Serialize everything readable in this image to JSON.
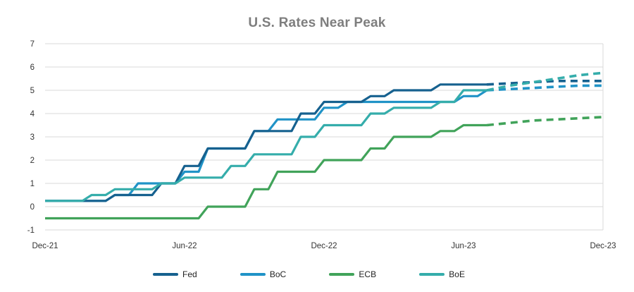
{
  "chart_data": {
    "type": "line",
    "title": "U.S. Rates Near Peak",
    "title_color": "#7e7e7e",
    "xlabel": "",
    "ylabel": "",
    "ylim": [
      -1,
      7
    ],
    "y_ticks": [
      7,
      6,
      5,
      4,
      3,
      2,
      1,
      0,
      -1
    ],
    "x_ticks": [
      "Dec-21",
      "Jun-22",
      "Dec-22",
      "Jun-23",
      "Dec-23"
    ],
    "x_tick_months": [
      0,
      6,
      12,
      18,
      24
    ],
    "months_span": 24,
    "grid": "horizontal",
    "grid_color": "#d9d9d9",
    "axis_label_color": "#333333",
    "legend_position": "bottom",
    "projection_style": "dashed",
    "series": [
      {
        "name": "Fed",
        "color": "#16618f",
        "solid_points": [
          [
            0,
            0.25
          ],
          [
            3,
            0.5
          ],
          [
            5,
            1.0
          ],
          [
            6,
            1.75
          ],
          [
            7,
            2.5
          ],
          [
            9,
            3.25
          ],
          [
            11,
            4.0
          ],
          [
            12,
            4.5
          ],
          [
            14,
            4.75
          ],
          [
            15,
            5.0
          ],
          [
            17,
            5.25
          ],
          [
            19,
            5.25
          ]
        ],
        "dashed_points": [
          [
            19,
            5.25
          ],
          [
            20,
            5.3
          ],
          [
            21,
            5.35
          ],
          [
            22,
            5.4
          ],
          [
            23,
            5.4
          ],
          [
            24,
            5.4
          ]
        ]
      },
      {
        "name": "BoC",
        "color": "#2093c7",
        "solid_points": [
          [
            0,
            0.25
          ],
          [
            3,
            0.5
          ],
          [
            4,
            1.0
          ],
          [
            6,
            1.5
          ],
          [
            7,
            2.5
          ],
          [
            9,
            3.25
          ],
          [
            10,
            3.75
          ],
          [
            12,
            4.25
          ],
          [
            13,
            4.5
          ],
          [
            18,
            4.75
          ],
          [
            19,
            5.0
          ]
        ],
        "dashed_points": [
          [
            19,
            5.0
          ],
          [
            20,
            5.05
          ],
          [
            21,
            5.1
          ],
          [
            22,
            5.15
          ],
          [
            23,
            5.2
          ],
          [
            24,
            5.2
          ]
        ]
      },
      {
        "name": "ECB",
        "color": "#41a35a",
        "solid_points": [
          [
            0,
            -0.5
          ],
          [
            7,
            0.0
          ],
          [
            9,
            0.75
          ],
          [
            10,
            1.5
          ],
          [
            12,
            2.0
          ],
          [
            14,
            2.5
          ],
          [
            15,
            3.0
          ],
          [
            17,
            3.25
          ],
          [
            18,
            3.5
          ],
          [
            19,
            3.5
          ]
        ],
        "dashed_points": [
          [
            19,
            3.5
          ],
          [
            20,
            3.6
          ],
          [
            21,
            3.7
          ],
          [
            22,
            3.75
          ],
          [
            23,
            3.8
          ],
          [
            24,
            3.85
          ]
        ]
      },
      {
        "name": "BoE",
        "color": "#35adab",
        "solid_points": [
          [
            0,
            0.25
          ],
          [
            2,
            0.5
          ],
          [
            3,
            0.75
          ],
          [
            5,
            1.0
          ],
          [
            6,
            1.25
          ],
          [
            8,
            1.75
          ],
          [
            9,
            2.25
          ],
          [
            11,
            3.0
          ],
          [
            12,
            3.5
          ],
          [
            14,
            4.0
          ],
          [
            15,
            4.25
          ],
          [
            17,
            4.5
          ],
          [
            18,
            5.0
          ],
          [
            19,
            5.0
          ]
        ],
        "dashed_points": [
          [
            19,
            5.0
          ],
          [
            20,
            5.2
          ],
          [
            21,
            5.35
          ],
          [
            22,
            5.5
          ],
          [
            23,
            5.65
          ],
          [
            24,
            5.75
          ]
        ]
      }
    ],
    "draw_order": [
      2,
      1,
      0,
      3
    ]
  }
}
